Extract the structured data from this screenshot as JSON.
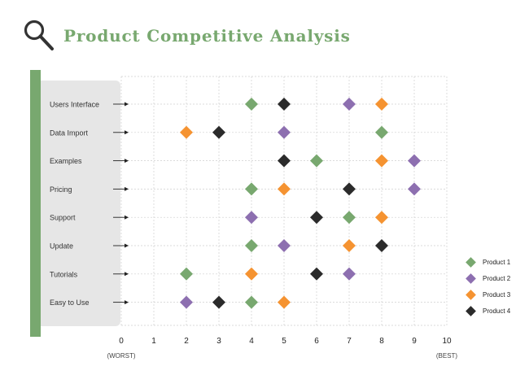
{
  "header": {
    "title": "Product Competitive Analysis",
    "icon": "magnifier-icon"
  },
  "colors": {
    "accent": "#78a86f",
    "panel": "#e6e6e6",
    "product1": "#78a86f",
    "product2": "#8d6fb0",
    "product3": "#f59331",
    "product4": "#2b2b2b"
  },
  "chart_data": {
    "type": "scatter",
    "title": "Product Competitive Analysis",
    "categories": [
      "Users Interface",
      "Data Import",
      "Examples",
      "Pricing",
      "Support",
      "Update",
      "Tutorials",
      "Easy to Use"
    ],
    "x_ticks": [
      "0",
      "1",
      "2",
      "3",
      "4",
      "5",
      "6",
      "7",
      "8",
      "9",
      "10"
    ],
    "xlim": [
      0,
      10
    ],
    "x_min_label": "(WORST)",
    "x_max_label": "(BEST)",
    "grid": true,
    "legend_position": "right",
    "series": [
      {
        "name": "Product 1",
        "values": [
          4,
          8,
          6,
          4,
          7,
          4,
          2,
          4
        ]
      },
      {
        "name": "Product 2",
        "values": [
          7,
          5,
          9,
          9,
          4,
          5,
          7,
          2
        ]
      },
      {
        "name": "Product 3",
        "values": [
          8,
          2,
          8,
          5,
          8,
          7,
          4,
          5
        ]
      },
      {
        "name": "Product 4",
        "values": [
          5,
          3,
          5,
          7,
          6,
          8,
          6,
          3
        ]
      }
    ]
  }
}
